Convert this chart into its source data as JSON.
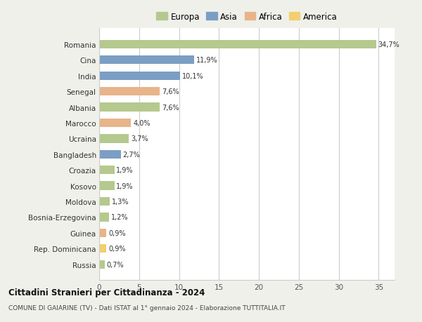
{
  "countries": [
    "Romania",
    "Cina",
    "India",
    "Senegal",
    "Albania",
    "Marocco",
    "Ucraina",
    "Bangladesh",
    "Croazia",
    "Kosovo",
    "Moldova",
    "Bosnia-Erzegovina",
    "Guinea",
    "Rep. Dominicana",
    "Russia"
  ],
  "values": [
    34.7,
    11.9,
    10.1,
    7.6,
    7.6,
    4.0,
    3.7,
    2.7,
    1.9,
    1.9,
    1.3,
    1.2,
    0.9,
    0.9,
    0.7
  ],
  "labels": [
    "34,7%",
    "11,9%",
    "10,1%",
    "7,6%",
    "7,6%",
    "4,0%",
    "3,7%",
    "2,7%",
    "1,9%",
    "1,9%",
    "1,3%",
    "1,2%",
    "0,9%",
    "0,9%",
    "0,7%"
  ],
  "continents": [
    "Europa",
    "Asia",
    "Asia",
    "Africa",
    "Europa",
    "Africa",
    "Europa",
    "Asia",
    "Europa",
    "Europa",
    "Europa",
    "Europa",
    "Africa",
    "America",
    "Europa"
  ],
  "continent_colors": {
    "Europa": "#b5c98e",
    "Asia": "#7b9ec4",
    "Africa": "#e8b48a",
    "America": "#f0d070"
  },
  "legend_order": [
    "Europa",
    "Asia",
    "Africa",
    "America"
  ],
  "title": "Cittadini Stranieri per Cittadinanza - 2024",
  "subtitle": "COMUNE DI GAIARINE (TV) - Dati ISTAT al 1° gennaio 2024 - Elaborazione TUTTITALIA.IT",
  "xlim": [
    0,
    37
  ],
  "xticks": [
    0,
    5,
    10,
    15,
    20,
    25,
    30,
    35
  ],
  "bg_color": "#f0f0eb",
  "plot_bg_color": "#ffffff"
}
